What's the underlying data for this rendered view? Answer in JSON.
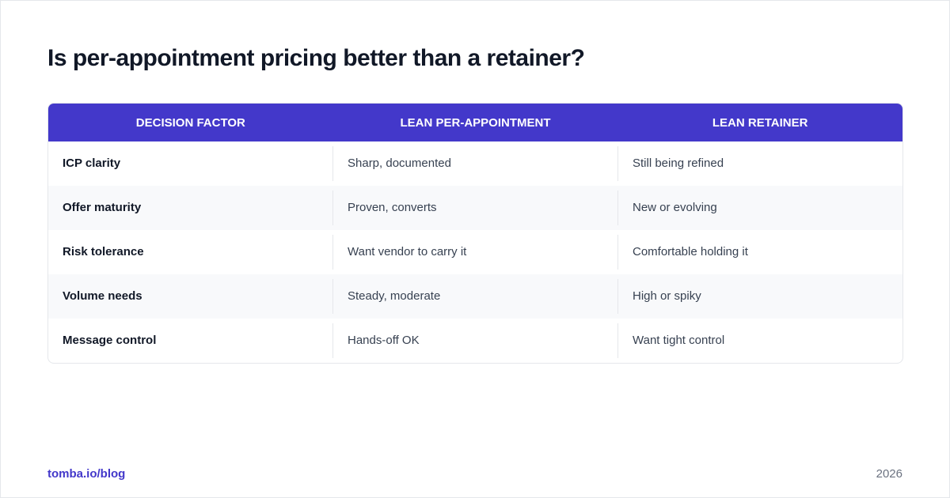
{
  "title": "Is per-appointment pricing better than a retainer?",
  "table": {
    "header": [
      "DECISION FACTOR",
      "LEAN PER-APPOINTMENT",
      "LEAN RETAINER"
    ],
    "rows": [
      [
        "ICP clarity",
        "Sharp, documented",
        "Still being refined"
      ],
      [
        "Offer maturity",
        "Proven, converts",
        "New or evolving"
      ],
      [
        "Risk tolerance",
        "Want vendor to carry it",
        "Comfortable holding it"
      ],
      [
        "Volume needs",
        "Steady, moderate",
        "High or spiky"
      ],
      [
        "Message control",
        "Hands-off OK",
        "Want tight control"
      ]
    ]
  },
  "footer": {
    "source": "tomba.io/blog",
    "year": "2026"
  }
}
